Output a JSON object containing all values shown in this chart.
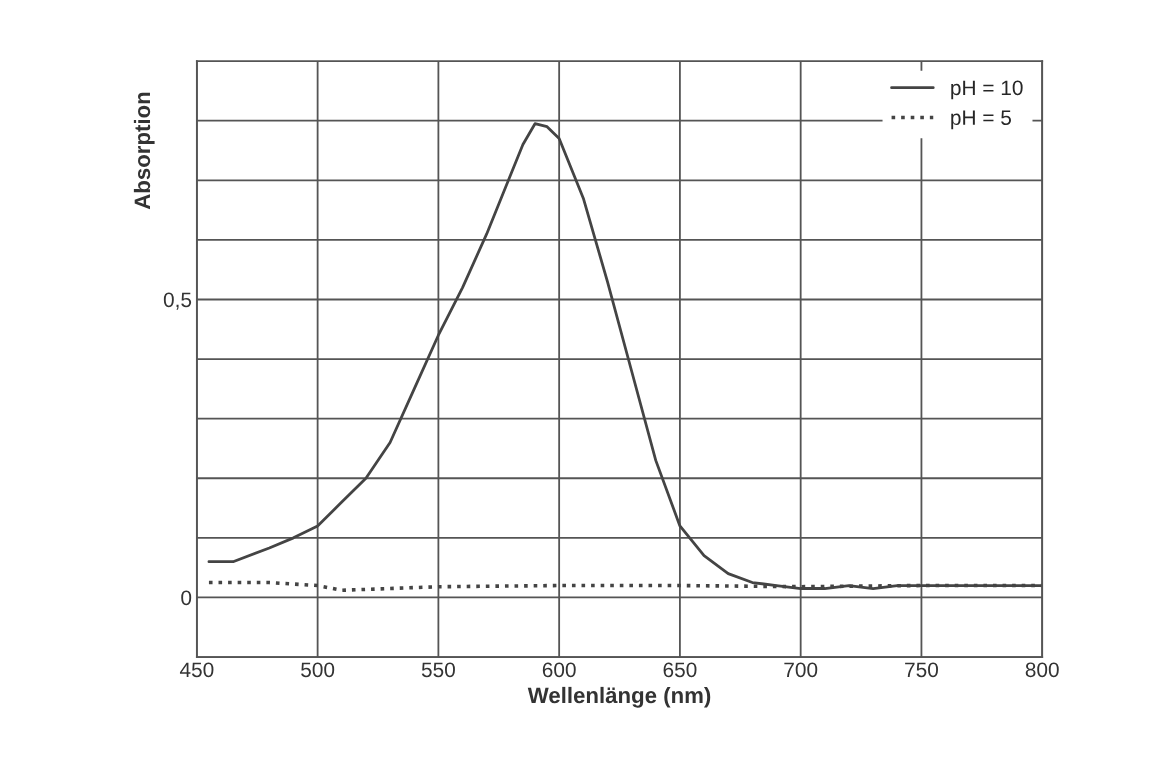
{
  "chart_data": {
    "type": "line",
    "xlabel": "Wellenlänge (nm)",
    "ylabel": "Absorption",
    "xlim": [
      450,
      800
    ],
    "xticks": [
      450,
      500,
      550,
      600,
      650,
      700,
      750,
      800
    ],
    "ylim": [
      -0.1,
      0.9
    ],
    "yticks": [
      {
        "value": -0.1,
        "label": null
      },
      {
        "value": 0,
        "label": "0"
      },
      {
        "value": 0.1,
        "label": null
      },
      {
        "value": 0.2,
        "label": null
      },
      {
        "value": 0.3,
        "label": null
      },
      {
        "value": 0.4,
        "label": null
      },
      {
        "value": 0.5,
        "label": "0,5"
      },
      {
        "value": 0.6,
        "label": null
      },
      {
        "value": 0.7,
        "label": null
      },
      {
        "value": 0.8,
        "label": null
      },
      {
        "value": 0.9,
        "label": null
      }
    ],
    "grid": true,
    "legend": "top right",
    "series": [
      {
        "name": "pH = 10",
        "color": "#444444",
        "line_style": "solid",
        "x": [
          455,
          465,
          480,
          490,
          500,
          510,
          520,
          530,
          540,
          550,
          560,
          570,
          580,
          585,
          590,
          595,
          600,
          610,
          620,
          630,
          640,
          650,
          660,
          670,
          680,
          690,
          700,
          710,
          720,
          730,
          740,
          750,
          760,
          770,
          780,
          790,
          800
        ],
        "values": [
          0.06,
          0.06,
          0.083,
          0.1,
          0.12,
          0.16,
          0.2,
          0.26,
          0.35,
          0.44,
          0.52,
          0.61,
          0.71,
          0.76,
          0.795,
          0.79,
          0.77,
          0.67,
          0.53,
          0.38,
          0.23,
          0.12,
          0.07,
          0.04,
          0.025,
          0.02,
          0.015,
          0.015,
          0.02,
          0.015,
          0.02,
          0.02,
          0.02,
          0.02,
          0.02,
          0.02,
          0.02
        ]
      },
      {
        "name": "pH = 5",
        "color": "#444444",
        "line_style": "dotted",
        "x": [
          455,
          480,
          500,
          510,
          530,
          550,
          600,
          650,
          700,
          750,
          800
        ],
        "values": [
          0.025,
          0.025,
          0.02,
          0.012,
          0.015,
          0.018,
          0.02,
          0.02,
          0.018,
          0.02,
          0.02
        ]
      }
    ]
  }
}
